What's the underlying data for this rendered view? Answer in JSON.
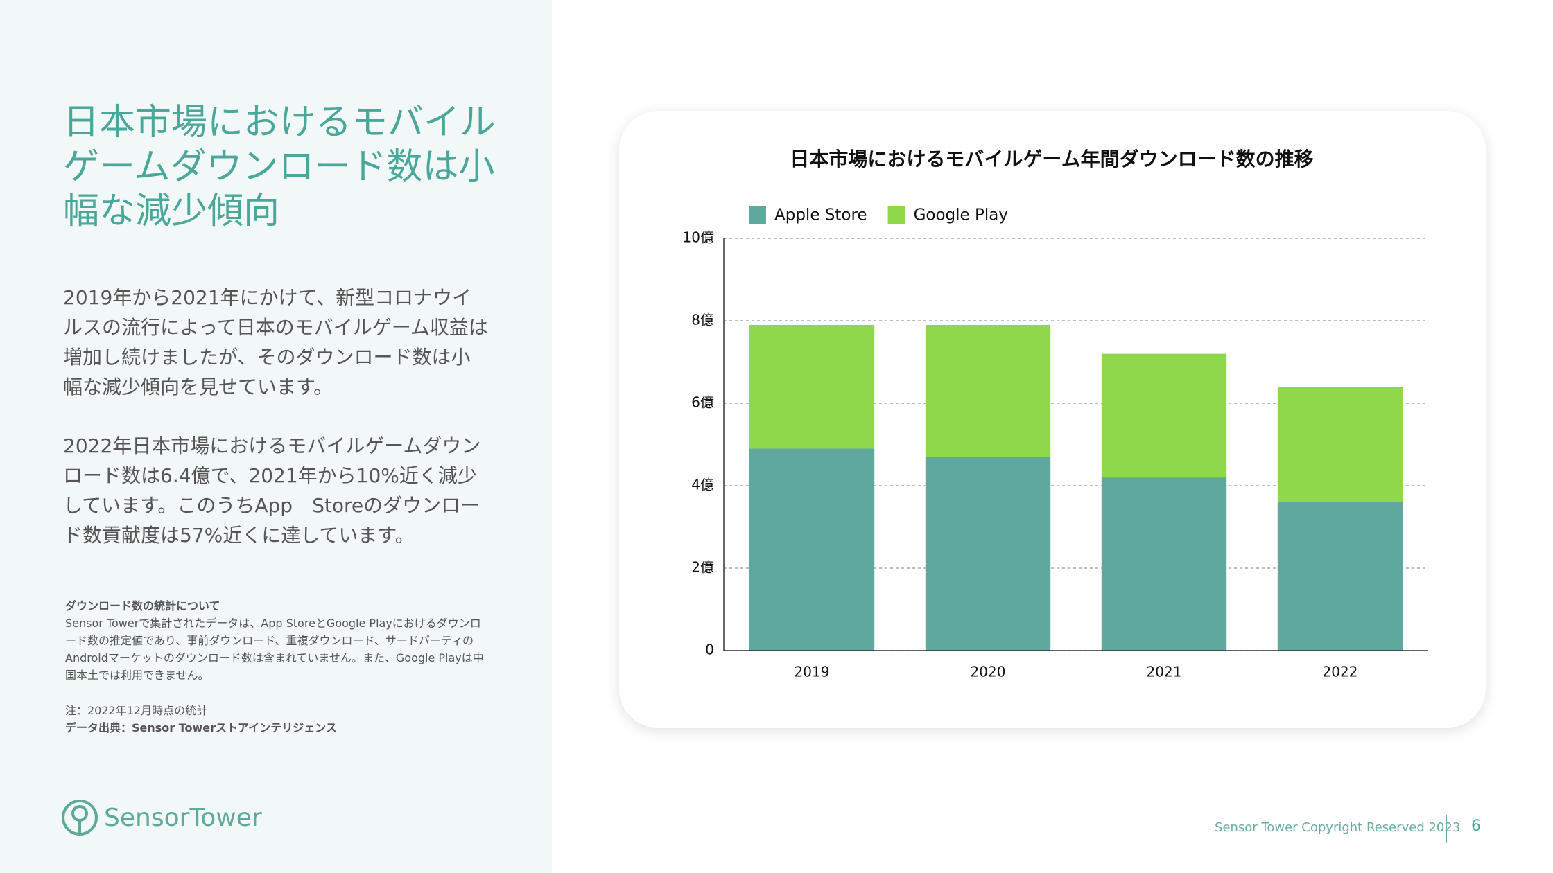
{
  "heading": "日本市場におけるモバイルゲームダウンロード数は小幅な減少傾向",
  "paragraphs": [
    "2019年から2021年にかけて、新型コロナウイルスの流行によって日本のモバイルゲーム収益は増加し続けましたが、そのダウンロード数は小幅な減少傾向を見せています。",
    "2022年日本市場におけるモバイルゲームダウンロード数は6.4億で、2021年から10%近く減少しています。このうちApp　Storeのダウンロード数貢献度は57%近くに達しています。"
  ],
  "notes": {
    "title": "ダウンロード数の統計について",
    "body": "Sensor Towerで集計されたデータは、App StoreとGoogle Playにおけるダウンロード数の推定値であり、事前ダウンロード、重複ダウンロード、サードパーティのAndroidマーケットのダウンロード数は含まれていません。また、Google Playは中国本土では利用できません。",
    "date": "注：2022年12月時点の統計",
    "source": "データ出典：Sensor Towerストアインテリジェンス"
  },
  "logo": "SensorTower",
  "footer": {
    "copyright": "Sensor Tower Copyright Reserved 2023",
    "page": "6"
  },
  "chart_data": {
    "type": "stacked_bar",
    "title": "日本市場におけるモバイルゲーム年間ダウンロード数の推移",
    "categories": [
      "2019",
      "2020",
      "2021",
      "2022"
    ],
    "series": [
      {
        "name": "Apple Store",
        "color": "#5ea89d",
        "values": [
          4.9,
          4.7,
          4.2,
          3.6
        ]
      },
      {
        "name": "Google Play",
        "color": "#8ed84a",
        "values": [
          3.0,
          3.2,
          3.0,
          2.8
        ]
      }
    ],
    "ylim": [
      0,
      10
    ],
    "yticks": [
      0,
      {
        "value": 2,
        "label": "2億"
      },
      {
        "value": 4,
        "label": "4億"
      },
      {
        "value": 6,
        "label": "6億"
      },
      {
        "value": 8,
        "label": "8億"
      },
      {
        "value": 10,
        "label": "10億"
      }
    ],
    "grid": true,
    "legend": "top-left"
  }
}
